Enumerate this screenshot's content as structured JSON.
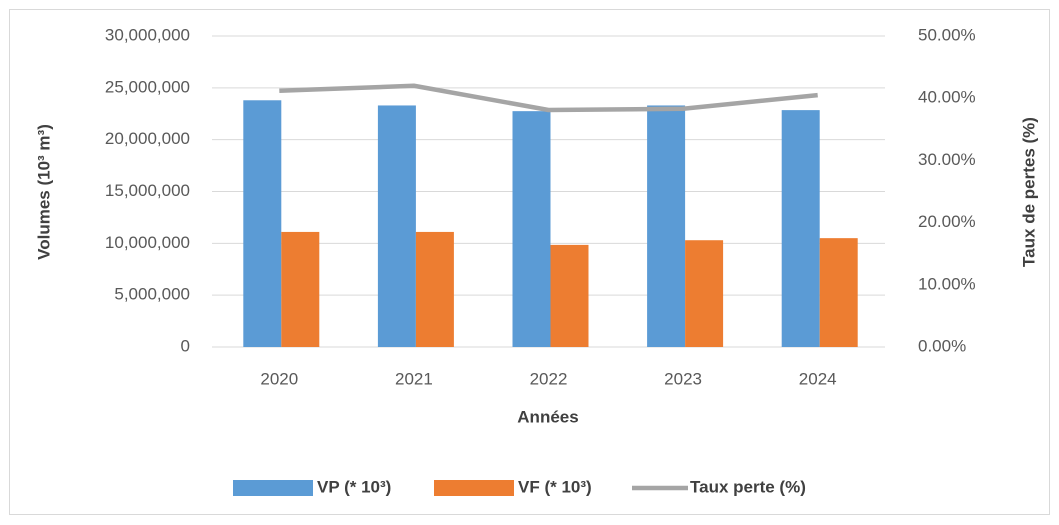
{
  "chart_data": {
    "type": "bar_line",
    "categories": [
      "2020",
      "2021",
      "2022",
      "2023",
      "2024"
    ],
    "series": [
      {
        "name": "VP (* 10³)",
        "color": "#5b9bd5",
        "type": "bar",
        "values": [
          23800000,
          23300000,
          22750000,
          23300000,
          22850000
        ]
      },
      {
        "name": "VF (* 10³)",
        "color": "#ed7d31",
        "type": "bar",
        "values": [
          11100000,
          11100000,
          9850000,
          10300000,
          10500000
        ]
      },
      {
        "name": "Taux perte (%)",
        "color": "#a5a5a5",
        "type": "line",
        "axis": "y2",
        "values": [
          41.2,
          42.0,
          38.1,
          38.3,
          40.5
        ]
      }
    ],
    "xlabel": "Années",
    "ylabel": "Volumes (10³ m³)",
    "y2label": "Taux de pertes (%)",
    "ylim": [
      0,
      30000000
    ],
    "yticks": [
      0,
      {
        "value": 5000000,
        "label": "5,000,000"
      },
      {
        "value": 10000000,
        "label": "10,000,000"
      },
      {
        "value": 15000000,
        "label": "15,000,000"
      },
      {
        "value": 20000000,
        "label": "20,000,000"
      },
      {
        "value": 25000000,
        "label": "25,000,000"
      },
      {
        "value": 30000000,
        "label": "30,000,000"
      }
    ],
    "y2lim": [
      0,
      50
    ],
    "y2ticks": [
      {
        "value": 0,
        "label": "0.00%"
      },
      {
        "value": 10,
        "label": "10.00%"
      },
      {
        "value": 20,
        "label": "20.00%"
      },
      {
        "value": 30,
        "label": "30.00%"
      },
      {
        "value": 40,
        "label": "40.00%"
      },
      {
        "value": 50,
        "label": "50.00%"
      }
    ],
    "grid": true,
    "legend": "bottom"
  }
}
